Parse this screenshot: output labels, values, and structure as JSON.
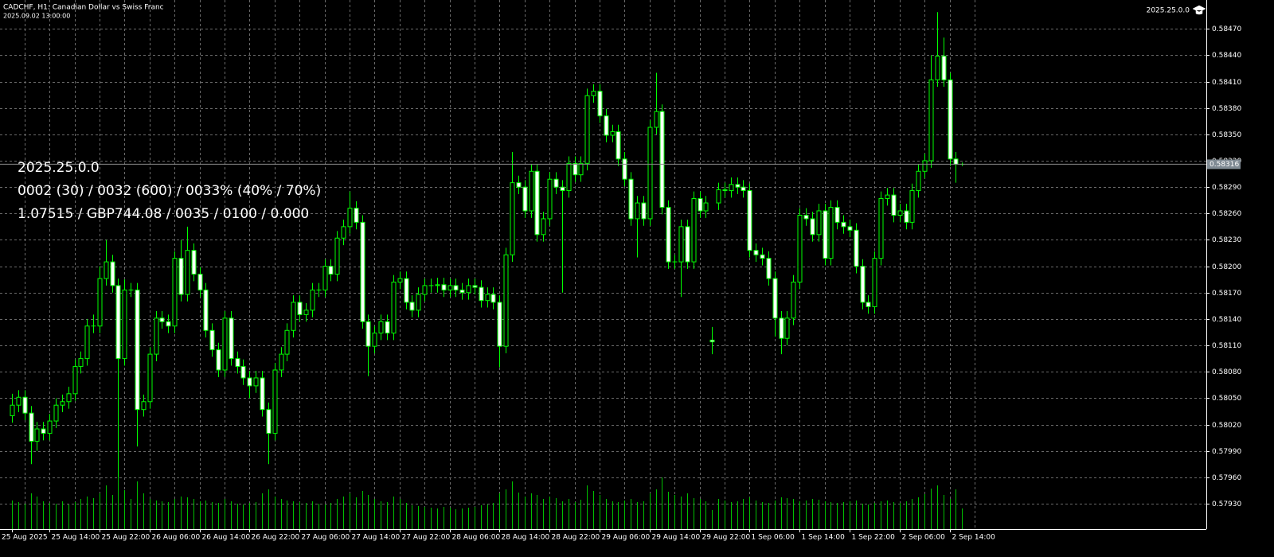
{
  "chart_data": {
    "type": "candlestick",
    "title": "CADCHF, H1:  Canadian Dollar vs Swiss Franc",
    "subtitle": "2025.09.02 13:00:00",
    "version": "2025.25.0.0",
    "info_lines": [
      "2025.25.0.0",
      "0002 (30) / 0032 (600) / 0033% (40% / 70%)",
      "1.07515 / GBP744.08 / 0035 / 0100 / 0.000"
    ],
    "open": [
      0.5803,
      0.58042,
      0.58051,
      0.58033,
      0.58001,
      0.58015,
      0.5801,
      0.58024,
      0.58042,
      0.58046,
      0.58055,
      0.58086,
      0.58095,
      0.58132,
      0.58132,
      0.58186,
      0.58205,
      0.58178,
      0.58095,
      0.58173,
      0.58173,
      0.58037,
      0.58046,
      0.581,
      0.58141,
      0.58137,
      0.58132,
      0.58209,
      0.58168,
      0.58218,
      0.58191,
      0.58173,
      0.58127,
      0.58105,
      0.58082,
      0.58141,
      0.58095,
      0.58086,
      0.58073,
      0.58064,
      0.58073,
      0.58037,
      0.5801,
      0.58082,
      0.581,
      0.58127,
      0.58159,
      0.58145,
      0.5815,
      0.58173,
      0.58173,
      0.582,
      0.58191,
      0.58232,
      0.58245,
      0.58266,
      0.5825,
      0.58137,
      0.58109,
      0.58124,
      0.58137,
      0.58124,
      0.58182,
      0.58186,
      0.58159,
      0.5815,
      0.58168,
      0.58178,
      0.58178,
      0.58179,
      0.58173,
      0.58178,
      0.58173,
      0.5817,
      0.58178,
      0.58176,
      0.58161,
      0.58168,
      0.58159,
      0.58109,
      0.58213,
      0.58295,
      0.5829,
      0.58263,
      0.58308,
      0.58236,
      0.58254,
      0.58299,
      0.5829,
      0.58286,
      0.58317,
      0.58304,
      0.58317,
      0.58394,
      0.58399,
      0.58371,
      0.58349,
      0.58353,
      0.58322,
      0.58299,
      0.58254,
      0.58272,
      0.58254,
      0.58358,
      0.58376,
      0.58267,
      0.58205,
      0.58205,
      0.58245,
      0.58205,
      0.58277,
      0.58263,
      0.58116,
      0.58272,
      0.58287,
      0.58286,
      0.58293,
      0.5829,
      0.58286,
      0.58218,
      0.58213,
      0.58209,
      0.58186,
      0.58141,
      0.58118,
      0.58141,
      0.58182,
      0.58258,
      0.58254,
      0.58236,
      0.58263,
      0.58209,
      0.58267,
      0.5825,
      0.58245,
      0.58241,
      0.582,
      0.58159,
      0.58154,
      0.58209,
      0.58277,
      0.58281,
      0.58258,
      0.58263,
      0.5825,
      0.58286,
      0.58308,
      0.5832,
      0.58412,
      0.58439,
      0.58412,
      0.58322,
      0.58316
    ],
    "high": [
      0.58055,
      0.58059,
      0.58059,
      0.58041,
      0.58023,
      0.58023,
      0.58032,
      0.5805,
      0.58054,
      0.58063,
      0.58094,
      0.58103,
      0.5814,
      0.58145,
      0.582,
      0.5823,
      0.58213,
      0.58186,
      0.58185,
      0.58181,
      0.58181,
      0.58054,
      0.58108,
      0.58149,
      0.58149,
      0.58145,
      0.58217,
      0.5823,
      0.58245,
      0.58226,
      0.58199,
      0.58181,
      0.58135,
      0.58113,
      0.58149,
      0.58149,
      0.58103,
      0.58094,
      0.58081,
      0.58081,
      0.58081,
      0.58045,
      0.5809,
      0.58108,
      0.58135,
      0.58167,
      0.58167,
      0.58158,
      0.58181,
      0.58181,
      0.58208,
      0.58208,
      0.5824,
      0.58253,
      0.58285,
      0.58274,
      0.58258,
      0.58145,
      0.58132,
      0.58145,
      0.58145,
      0.5819,
      0.58194,
      0.58194,
      0.58167,
      0.58176,
      0.58186,
      0.58186,
      0.58187,
      0.58187,
      0.58186,
      0.58186,
      0.58181,
      0.58186,
      0.58186,
      0.58184,
      0.58176,
      0.58176,
      0.58167,
      0.58221,
      0.5833,
      0.58303,
      0.58298,
      0.58316,
      0.58316,
      0.58262,
      0.58307,
      0.58307,
      0.58298,
      0.58325,
      0.58325,
      0.58325,
      0.58402,
      0.58407,
      0.58407,
      0.58379,
      0.58361,
      0.58361,
      0.5833,
      0.58307,
      0.5828,
      0.5828,
      0.58366,
      0.5842,
      0.58384,
      0.58275,
      0.58213,
      0.58253,
      0.58253,
      0.58285,
      0.58285,
      0.5828,
      0.58131,
      0.58295,
      0.58295,
      0.58301,
      0.58301,
      0.58298,
      0.58294,
      0.58226,
      0.58221,
      0.58217,
      0.58194,
      0.58149,
      0.58149,
      0.5819,
      0.58266,
      0.58266,
      0.58262,
      0.58271,
      0.58271,
      0.58275,
      0.58275,
      0.58258,
      0.58253,
      0.58249,
      0.58208,
      0.58167,
      0.58217,
      0.58285,
      0.58289,
      0.58289,
      0.58271,
      0.58271,
      0.58294,
      0.58316,
      0.58328,
      0.5844,
      0.58489,
      0.5846,
      0.5842,
      0.5833,
      0.58318
    ],
    "low": [
      0.58022,
      0.58034,
      0.58025,
      0.57975,
      0.5799,
      0.58002,
      0.58002,
      0.58016,
      0.58034,
      0.58038,
      0.58047,
      0.58078,
      0.58087,
      0.58124,
      0.58124,
      0.58178,
      0.5817,
      0.5796,
      0.58087,
      0.58165,
      0.57995,
      0.58029,
      0.58038,
      0.58092,
      0.58129,
      0.58124,
      0.58124,
      0.5816,
      0.5816,
      0.58183,
      0.58165,
      0.58119,
      0.58097,
      0.58074,
      0.58074,
      0.58087,
      0.58078,
      0.58065,
      0.5805,
      0.58056,
      0.58029,
      0.57975,
      0.58002,
      0.58074,
      0.58092,
      0.58119,
      0.58137,
      0.58137,
      0.58142,
      0.58165,
      0.58165,
      0.58183,
      0.58183,
      0.58224,
      0.58237,
      0.58242,
      0.58129,
      0.58075,
      0.58101,
      0.58116,
      0.58116,
      0.58116,
      0.58174,
      0.58151,
      0.58142,
      0.58142,
      0.5816,
      0.5817,
      0.5817,
      0.58165,
      0.58165,
      0.58165,
      0.58162,
      0.58162,
      0.58168,
      0.58153,
      0.58153,
      0.58151,
      0.58085,
      0.58101,
      0.58205,
      0.58282,
      0.58255,
      0.58255,
      0.58228,
      0.58228,
      0.58246,
      0.58282,
      0.5817,
      0.58278,
      0.58296,
      0.58296,
      0.58309,
      0.58386,
      0.58363,
      0.58341,
      0.58341,
      0.58314,
      0.58291,
      0.58246,
      0.5821,
      0.58246,
      0.58246,
      0.5835,
      0.58259,
      0.58197,
      0.58197,
      0.58165,
      0.58197,
      0.58197,
      0.58255,
      0.58255,
      0.581,
      0.58264,
      0.58278,
      0.58278,
      0.58282,
      0.58278,
      0.5821,
      0.58205,
      0.58201,
      0.58178,
      0.5812,
      0.581,
      0.5811,
      0.58133,
      0.58174,
      0.58246,
      0.58228,
      0.58228,
      0.58201,
      0.58201,
      0.58242,
      0.58237,
      0.58233,
      0.58192,
      0.58151,
      0.58146,
      0.58146,
      0.58201,
      0.58269,
      0.5825,
      0.5825,
      0.58242,
      0.58242,
      0.58278,
      0.583,
      0.58312,
      0.58404,
      0.58404,
      0.58314,
      0.58295,
      0.58314
    ],
    "close": [
      0.58042,
      0.58051,
      0.58033,
      0.58001,
      0.58015,
      0.5801,
      0.58024,
      0.58042,
      0.58046,
      0.58055,
      0.58086,
      0.58095,
      0.58132,
      0.58132,
      0.58186,
      0.58205,
      0.58178,
      0.58095,
      0.58173,
      0.58173,
      0.58037,
      0.58046,
      0.581,
      0.58141,
      0.58137,
      0.58132,
      0.58209,
      0.58168,
      0.58218,
      0.58191,
      0.58173,
      0.58127,
      0.58105,
      0.58082,
      0.58141,
      0.58095,
      0.58086,
      0.58073,
      0.58064,
      0.58073,
      0.58037,
      0.5801,
      0.58082,
      0.581,
      0.58127,
      0.58159,
      0.58145,
      0.5815,
      0.58173,
      0.58173,
      0.582,
      0.58191,
      0.58232,
      0.58245,
      0.58266,
      0.5825,
      0.58137,
      0.58109,
      0.58124,
      0.58137,
      0.58124,
      0.58182,
      0.58186,
      0.58159,
      0.5815,
      0.58168,
      0.58178,
      0.58178,
      0.58179,
      0.58173,
      0.58178,
      0.58173,
      0.5817,
      0.58178,
      0.58176,
      0.58161,
      0.58168,
      0.58159,
      0.58109,
      0.58213,
      0.58295,
      0.5829,
      0.58263,
      0.58308,
      0.58236,
      0.58254,
      0.58299,
      0.5829,
      0.58286,
      0.58317,
      0.58304,
      0.58317,
      0.58394,
      0.58399,
      0.58371,
      0.58349,
      0.58353,
      0.58322,
      0.58299,
      0.58254,
      0.58272,
      0.58254,
      0.58358,
      0.58376,
      0.58267,
      0.58205,
      0.58205,
      0.58245,
      0.58205,
      0.58277,
      0.58263,
      0.58272,
      0.58114,
      0.58287,
      0.58286,
      0.58293,
      0.5829,
      0.58286,
      0.58218,
      0.58213,
      0.58209,
      0.58186,
      0.58141,
      0.58118,
      0.58141,
      0.58182,
      0.58258,
      0.58254,
      0.58236,
      0.58263,
      0.58209,
      0.58267,
      0.5825,
      0.58245,
      0.58241,
      0.582,
      0.58159,
      0.58154,
      0.58209,
      0.58277,
      0.58281,
      0.58258,
      0.58263,
      0.5825,
      0.58286,
      0.58308,
      0.5832,
      0.58412,
      0.58439,
      0.58412,
      0.58322,
      0.58316,
      0.58316
    ],
    "volume": [
      720,
      680,
      640,
      900,
      820,
      700,
      660,
      640,
      700,
      620,
      680,
      760,
      820,
      780,
      900,
      1100,
      860,
      1400,
      980,
      760,
      1200,
      900,
      760,
      720,
      700,
      680,
      760,
      820,
      800,
      760,
      700,
      720,
      680,
      660,
      760,
      700,
      640,
      620,
      660,
      680,
      900,
      1000,
      820,
      760,
      720,
      700,
      680,
      660,
      700,
      640,
      620,
      660,
      760,
      820,
      900,
      800,
      960,
      860,
      760,
      700,
      680,
      820,
      760,
      660,
      600,
      580,
      560,
      540,
      520,
      560,
      540,
      500,
      520,
      540,
      560,
      600,
      620,
      660,
      900,
      1000,
      1200,
      920,
      820,
      900,
      860,
      760,
      820,
      780,
      700,
      760,
      680,
      740,
      1100,
      960,
      860,
      760,
      700,
      680,
      720,
      760,
      680,
      700,
      900,
      1000,
      1300,
      940,
      860,
      820,
      900,
      780,
      760,
      700,
      480,
      760,
      720,
      680,
      700,
      760,
      800,
      720,
      680,
      660,
      720,
      800,
      780,
      760,
      700,
      720,
      760,
      740,
      700,
      680,
      660,
      680,
      700,
      720,
      640,
      620,
      660,
      700,
      720,
      680,
      660,
      700,
      760,
      800,
      880,
      1020,
      1100,
      860,
      760,
      1000,
      520
    ],
    "xticks": [
      {
        "value": 0,
        "label": "25 Aug 2025"
      },
      {
        "value": 6,
        "label": "25 Aug 14:00"
      },
      {
        "value": 14,
        "label": "25 Aug 22:00"
      },
      {
        "value": 22,
        "label": "26 Aug 06:00"
      },
      {
        "value": 30,
        "label": "26 Aug 14:00"
      },
      {
        "value": 38,
        "label": "26 Aug 22:00"
      },
      {
        "value": 46,
        "label": "27 Aug 06:00"
      },
      {
        "value": 54,
        "label": "27 Aug 14:00"
      },
      {
        "value": 62,
        "label": "27 Aug 22:00"
      },
      {
        "value": 70,
        "label": "28 Aug 06:00"
      },
      {
        "value": 78,
        "label": "28 Aug 14:00"
      },
      {
        "value": 86,
        "label": "28 Aug 22:00"
      },
      {
        "value": 94,
        "label": "29 Aug 06:00"
      },
      {
        "value": 102,
        "label": "29 Aug 14:00"
      },
      {
        "value": 110,
        "label": "29 Aug 22:00"
      },
      {
        "value": 118,
        "label": "1 Sep 06:00"
      },
      {
        "value": 126,
        "label": "1 Sep 14:00"
      },
      {
        "value": 134,
        "label": "1 Sep 22:00"
      },
      {
        "value": 142,
        "label": "2 Sep 06:00"
      },
      {
        "value": 150,
        "label": "2 Sep 14:00"
      }
    ],
    "ylim": [
      0.57901,
      0.58501
    ],
    "yticks": [
      {
        "value": 0.5847,
        "label": "0.58470"
      },
      {
        "value": 0.5844,
        "label": "0.58440"
      },
      {
        "value": 0.5841,
        "label": "0.58410"
      },
      {
        "value": 0.5838,
        "label": "0.58380"
      },
      {
        "value": 0.5835,
        "label": "0.58350"
      },
      {
        "value": 0.5832,
        "label": "0.58320"
      },
      {
        "value": 0.5829,
        "label": "0.58290"
      },
      {
        "value": 0.5826,
        "label": "0.58260"
      },
      {
        "value": 0.5823,
        "label": "0.58230"
      },
      {
        "value": 0.582,
        "label": "0.58200"
      },
      {
        "value": 0.5817,
        "label": "0.58170"
      },
      {
        "value": 0.5814,
        "label": "0.58140"
      },
      {
        "value": 0.5811,
        "label": "0.58110"
      },
      {
        "value": 0.5808,
        "label": "0.58080"
      },
      {
        "value": 0.5805,
        "label": "0.58050"
      },
      {
        "value": 0.5802,
        "label": "0.58020"
      },
      {
        "value": 0.5799,
        "label": "0.57990"
      },
      {
        "value": 0.5796,
        "label": "0.57960"
      },
      {
        "value": 0.5793,
        "label": "0.57930"
      }
    ],
    "last_price": 0.58316,
    "grid": true,
    "up_color": "#000000",
    "down_color": "#ffffff",
    "wick_color": "#00ff00",
    "volume_color": "#00c000"
  }
}
